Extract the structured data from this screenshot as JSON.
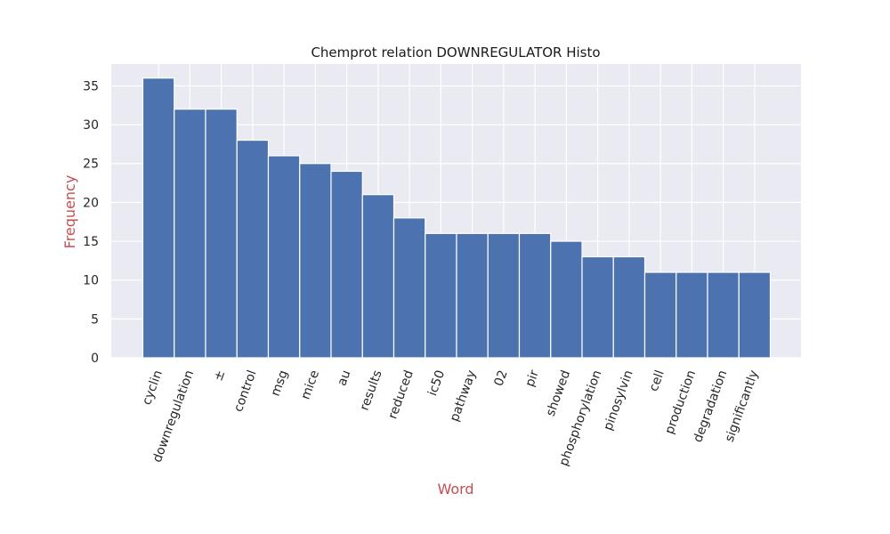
{
  "chart_data": {
    "type": "bar",
    "title": "Chemprot relation DOWNREGULATOR Histo",
    "xlabel": "Word",
    "ylabel": "Frequency",
    "categories": [
      "cyclin",
      "downregulation",
      "±",
      "control",
      "msg",
      "mice",
      "au",
      "results",
      "reduced",
      "ic50",
      "pathway",
      "02",
      "pir",
      "showed",
      "phosphorylation",
      "pinosylvin",
      "cell",
      "production",
      "degradation",
      "significantly"
    ],
    "values": [
      36,
      32,
      32,
      28,
      26,
      25,
      24,
      21,
      18,
      16,
      16,
      16,
      16,
      15,
      13,
      13,
      11,
      11,
      11,
      11
    ],
    "ylim": [
      0,
      37.8
    ],
    "yticks": [
      0,
      5,
      10,
      15,
      20,
      25,
      30,
      35
    ],
    "grid": true,
    "colors": {
      "bar": "#4c72b0",
      "plot_background": "#eaeaf2",
      "grid": "#ffffff",
      "axis_label": "#c44e52"
    }
  }
}
